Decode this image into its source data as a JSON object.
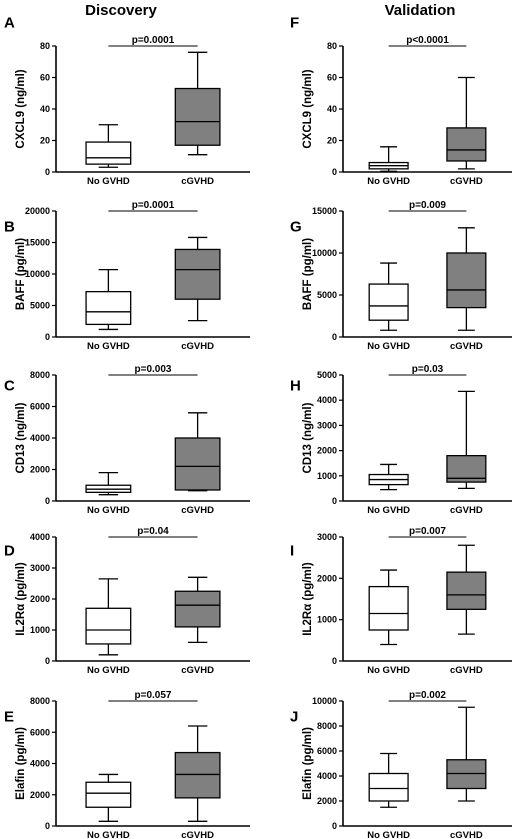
{
  "columns": [
    {
      "title": "Discovery"
    },
    {
      "title": "Validation"
    }
  ],
  "colors": {
    "control_box": "#ffffff",
    "cgvhd_box": "#808080",
    "line": "#000000"
  },
  "chart_data": [
    {
      "type": "box",
      "letter": "A",
      "ylabel": "CXCL9 (ng/ml)",
      "ylim": [
        0,
        80
      ],
      "yticks": [
        0,
        20,
        40,
        60,
        80
      ],
      "yticklabels": [
        "0",
        "20",
        "40",
        "60",
        "80"
      ],
      "categories": [
        "No GVHD",
        "cGVHD"
      ],
      "pvalue": "p=0.0001",
      "boxes": [
        {
          "min": 3,
          "q1": 5,
          "median": 9,
          "q3": 19,
          "max": 30
        },
        {
          "min": 11,
          "q1": 17,
          "median": 32,
          "q3": 53,
          "max": 76
        }
      ]
    },
    {
      "type": "box",
      "letter": "F",
      "ylabel": "CXCL9 (ng/ml)",
      "ylim": [
        0,
        80
      ],
      "yticks": [
        0,
        20,
        40,
        60,
        80
      ],
      "yticklabels": [
        "0",
        "20",
        "40",
        "60",
        "80"
      ],
      "categories": [
        "No GVHD",
        "cGVHD"
      ],
      "pvalue": "p<0.0001",
      "boxes": [
        {
          "min": 0.5,
          "q1": 2,
          "median": 4,
          "q3": 6,
          "max": 16
        },
        {
          "min": 2,
          "q1": 7,
          "median": 14,
          "q3": 28,
          "max": 60
        }
      ]
    },
    {
      "type": "box",
      "letter": "B",
      "ylabel": "BAFF (pg/ml)",
      "ylim": [
        0,
        20000
      ],
      "yticks": [
        0,
        5000,
        10000,
        15000,
        20000
      ],
      "yticklabels": [
        "0",
        "5000",
        "10000",
        "15000",
        "20000"
      ],
      "categories": [
        "No GVHD",
        "cGVHD"
      ],
      "pvalue": "p=0.0001",
      "boxes": [
        {
          "min": 1200,
          "q1": 2000,
          "median": 4000,
          "q3": 7200,
          "max": 10700
        },
        {
          "min": 2600,
          "q1": 6000,
          "median": 10700,
          "q3": 13900,
          "max": 15800
        }
      ]
    },
    {
      "type": "box",
      "letter": "G",
      "ylabel": "BAFF (pg/ml)",
      "ylim": [
        0,
        15000
      ],
      "yticks": [
        0,
        5000,
        10000,
        15000
      ],
      "yticklabels": [
        "0",
        "5000",
        "10000",
        "15000"
      ],
      "categories": [
        "No GVHD",
        "cGVHD"
      ],
      "pvalue": "p=0.009",
      "boxes": [
        {
          "min": 800,
          "q1": 2000,
          "median": 3700,
          "q3": 6300,
          "max": 8800
        },
        {
          "min": 800,
          "q1": 3500,
          "median": 5600,
          "q3": 10000,
          "max": 13000
        }
      ]
    },
    {
      "type": "box",
      "letter": "C",
      "ylabel": "CD13 (ng/ml)",
      "ylim": [
        0,
        8000
      ],
      "yticks": [
        0,
        2000,
        4000,
        6000,
        8000
      ],
      "yticklabels": [
        "0",
        "2000",
        "4000",
        "6000",
        "8000"
      ],
      "categories": [
        "No GVHD",
        "cGVHD"
      ],
      "pvalue": "p=0.003",
      "boxes": [
        {
          "min": 400,
          "q1": 550,
          "median": 750,
          "q3": 1000,
          "max": 1800
        },
        {
          "min": 650,
          "q1": 700,
          "median": 2200,
          "q3": 4000,
          "max": 5600
        }
      ]
    },
    {
      "type": "box",
      "letter": "H",
      "ylabel": "CD13 (ng/ml)",
      "ylim": [
        0,
        5000
      ],
      "yticks": [
        0,
        1000,
        2000,
        3000,
        4000,
        5000
      ],
      "yticklabels": [
        "0",
        "1000",
        "2000",
        "3000",
        "4000",
        "5000"
      ],
      "categories": [
        "No GVHD",
        "cGVHD"
      ],
      "pvalue": "p=0.03",
      "boxes": [
        {
          "min": 450,
          "q1": 650,
          "median": 850,
          "q3": 1050,
          "max": 1450
        },
        {
          "min": 500,
          "q1": 750,
          "median": 900,
          "q3": 1800,
          "max": 4350
        }
      ]
    },
    {
      "type": "box",
      "letter": "D",
      "ylabel": "IL2Rα (pg/ml)",
      "ylim": [
        0,
        4000
      ],
      "yticks": [
        0,
        1000,
        2000,
        3000,
        4000
      ],
      "yticklabels": [
        "0",
        "1000",
        "2000",
        "3000",
        "4000"
      ],
      "categories": [
        "No GVHD",
        "cGVHD"
      ],
      "pvalue": "p=0.04",
      "boxes": [
        {
          "min": 200,
          "q1": 550,
          "median": 1000,
          "q3": 1700,
          "max": 2650
        },
        {
          "min": 600,
          "q1": 1100,
          "median": 1800,
          "q3": 2250,
          "max": 2700
        }
      ]
    },
    {
      "type": "box",
      "letter": "I",
      "ylabel": "IL2Rα (pg/ml)",
      "ylim": [
        0,
        3000
      ],
      "yticks": [
        0,
        1000,
        2000,
        3000
      ],
      "yticklabels": [
        "0",
        "1000",
        "2000",
        "3000"
      ],
      "categories": [
        "No GVHD",
        "cGVHD"
      ],
      "pvalue": "p=0.007",
      "boxes": [
        {
          "min": 400,
          "q1": 750,
          "median": 1150,
          "q3": 1800,
          "max": 2200
        },
        {
          "min": 650,
          "q1": 1250,
          "median": 1600,
          "q3": 2150,
          "max": 2800
        }
      ]
    },
    {
      "type": "box",
      "letter": "E",
      "ylabel": "Elafin (pg/ml)",
      "ylim": [
        0,
        8000
      ],
      "yticks": [
        0,
        2000,
        4000,
        6000,
        8000
      ],
      "yticklabels": [
        "0",
        "2000",
        "4000",
        "6000",
        "8000"
      ],
      "categories": [
        "No GVHD",
        "cGVHD"
      ],
      "pvalue": "p=0.057",
      "boxes": [
        {
          "min": 300,
          "q1": 1200,
          "median": 2100,
          "q3": 2800,
          "max": 3300
        },
        {
          "min": 300,
          "q1": 1800,
          "median": 3300,
          "q3": 4700,
          "max": 6400
        }
      ]
    },
    {
      "type": "box",
      "letter": "J",
      "ylabel": "Elafin (pg/ml)",
      "ylim": [
        0,
        10000
      ],
      "yticks": [
        0,
        2000,
        4000,
        6000,
        8000,
        10000
      ],
      "yticklabels": [
        "0",
        "2000",
        "4000",
        "6000",
        "8000",
        "10000"
      ],
      "categories": [
        "No GVHD",
        "cGVHD"
      ],
      "pvalue": "p=0.002",
      "boxes": [
        {
          "min": 1500,
          "q1": 2000,
          "median": 3000,
          "q3": 4200,
          "max": 5800
        },
        {
          "min": 2000,
          "q1": 3000,
          "median": 4200,
          "q3": 5300,
          "max": 9500
        }
      ]
    }
  ]
}
